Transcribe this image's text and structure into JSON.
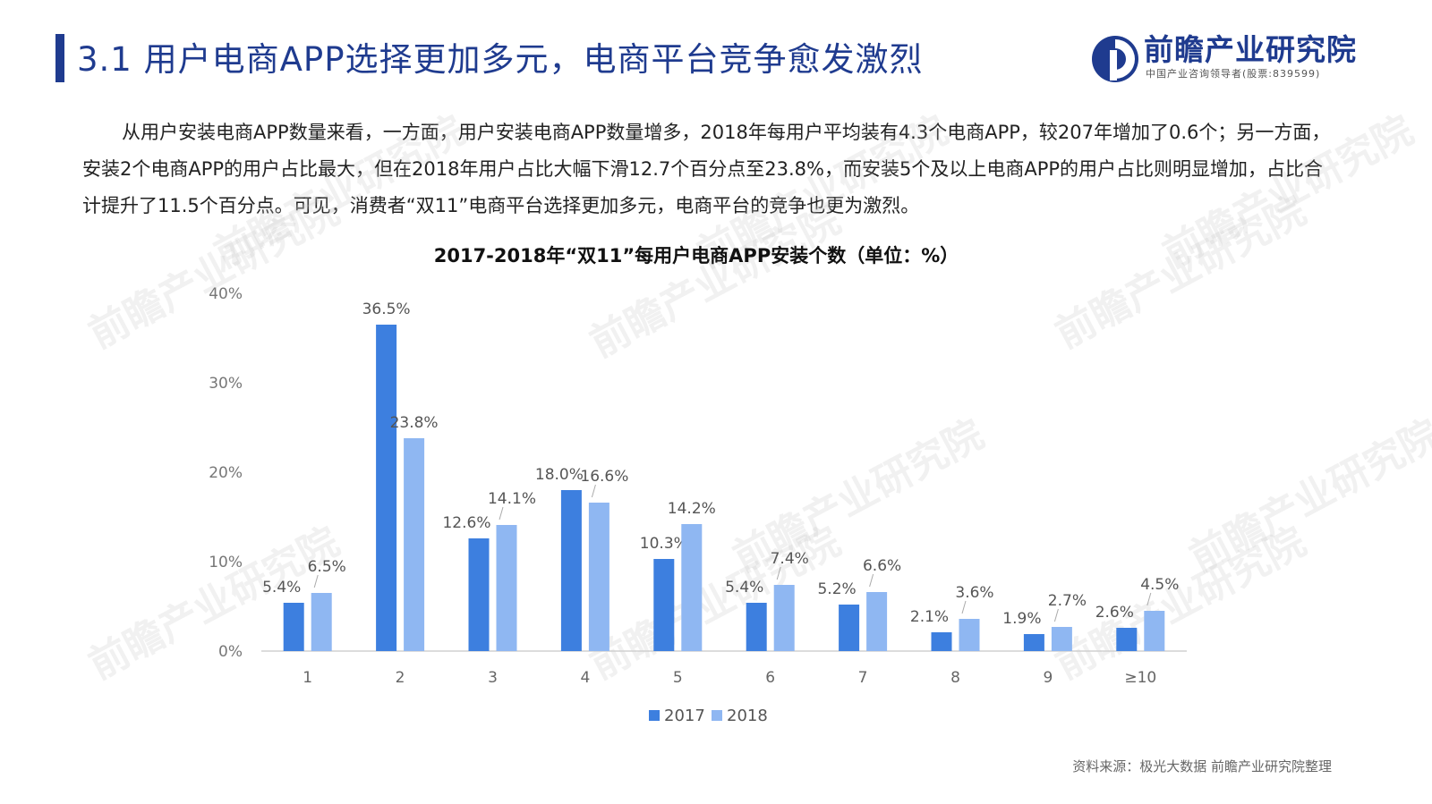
{
  "header": {
    "title": "3.1 用户电商APP选择更加多元，电商平台竞争愈发激烈",
    "logo_name": "前瞻产业研究院",
    "logo_sub": "中国产业咨询领导者(股票:839599)"
  },
  "intro": "从用户安装电商APP数量来看，一方面，用户安装电商APP数量增多，2018年每用户平均装有4.3个电商APP，较207年增加了0.6个；另一方面，安装2个电商APP的用户占比最大，但在2018年用户占比大幅下滑12.7个百分点至23.8%，而安装5个及以上电商APP的用户占比则明显增加，占比合计提升了11.5个百分点。可见，消费者“双11”电商平台选择更加多元，电商平台的竞争也更为激烈。",
  "source": "资料来源：极光大数据 前瞻产业研究院整理",
  "colors": {
    "series2017": "#3d7fdf",
    "series2018": "#8fb7f2",
    "accent": "#1f3b8f"
  },
  "chart_data": {
    "type": "bar",
    "title": "2017-2018年“双11”每用户电商APP安装个数（单位：%）",
    "categories": [
      "1",
      "2",
      "3",
      "4",
      "5",
      "6",
      "7",
      "8",
      "9",
      "≥10"
    ],
    "series": [
      {
        "name": "2017",
        "values": [
          5.4,
          36.5,
          12.6,
          18.0,
          10.3,
          5.4,
          5.2,
          2.1,
          1.9,
          2.6
        ],
        "labels": [
          "5.4%",
          "36.5%",
          "12.6%",
          "18.0%",
          "10.3%",
          "5.4%",
          "5.2%",
          "2.1%",
          "1.9%",
          "2.6%"
        ]
      },
      {
        "name": "2018",
        "values": [
          6.5,
          23.8,
          14.1,
          16.6,
          14.2,
          7.4,
          6.6,
          3.6,
          2.7,
          4.5
        ],
        "labels": [
          "6.5%",
          "23.8%",
          "14.1%",
          "16.6%",
          "14.2%",
          "7.4%",
          "6.6%",
          "3.6%",
          "2.7%",
          "4.5%"
        ]
      }
    ],
    "yticks": [
      "0%",
      "10%",
      "20%",
      "30%",
      "40%"
    ],
    "ylim": [
      0,
      40
    ],
    "grid": false,
    "legend": "bottom-center"
  }
}
